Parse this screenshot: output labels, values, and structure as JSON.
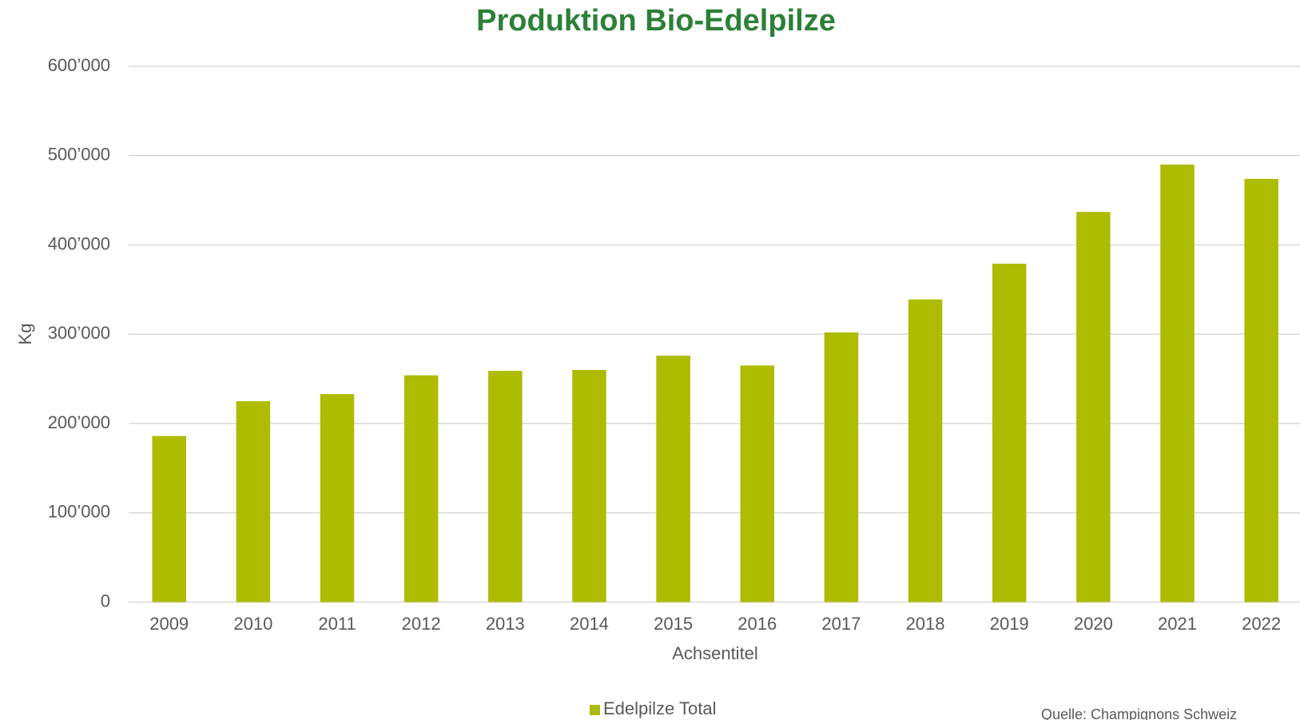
{
  "chart_data": {
    "type": "bar",
    "title": "Produktion Bio-Edelpilze",
    "y_axis_label": "Kg",
    "x_axis_label": "Achsentitel",
    "source": "Quelle: Champignons Schweiz",
    "categories": [
      "2009",
      "2010",
      "2011",
      "2012",
      "2013",
      "2014",
      "2015",
      "2016",
      "2017",
      "2018",
      "2019",
      "2020",
      "2021",
      "2022"
    ],
    "series": [
      {
        "name": "Edelpilze Total",
        "color": "#adbc00",
        "values": [
          186000,
          225000,
          233000,
          254000,
          259000,
          260000,
          276000,
          265000,
          302000,
          339000,
          379000,
          437000,
          490000,
          474000
        ]
      }
    ],
    "ylim": [
      0,
      600000
    ],
    "yticks": [
      0,
      {
        "value": 100000,
        "label": "100’000"
      },
      {
        "value": 200000,
        "label": "200’000"
      },
      {
        "value": 300000,
        "label": "300’000"
      },
      {
        "value": 400000,
        "label": "400’000"
      },
      {
        "value": 500000,
        "label": "500’000"
      },
      {
        "value": 600000,
        "label": "600’000"
      }
    ],
    "grid": true,
    "legend": "bottom"
  }
}
